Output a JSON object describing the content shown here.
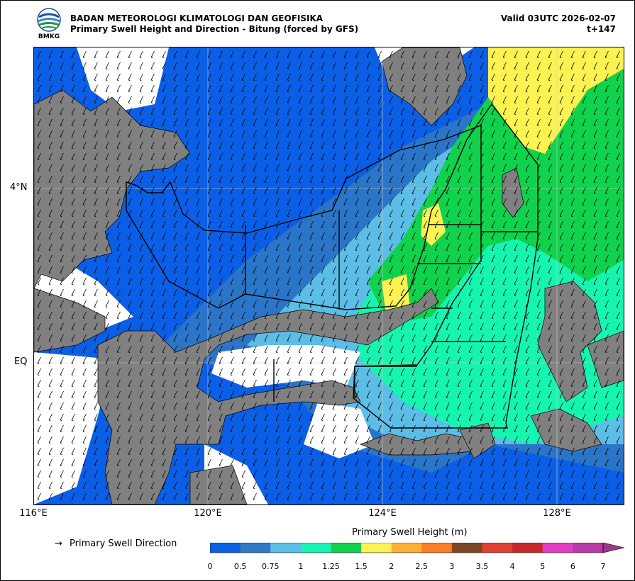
{
  "header": {
    "org": "BADAN METEOROLOGI KLIMATOLOGI DAN GEOFISIKA",
    "product": "Primary Swell Height and Direction - Bitung (forced by GFS)",
    "valid": "Valid 03UTC 2026-02-07",
    "step": "t+147",
    "logo_text": "BMKG"
  },
  "map": {
    "lat_labels": [
      "4°N",
      "EQ"
    ],
    "lon_labels": [
      "116°E",
      "120°E",
      "124°E",
      "128°E"
    ],
    "dominant_direction": "south-west",
    "land_color": "#808080",
    "nodata_color": "#ffffff"
  },
  "legend": {
    "arrow_glyph": "→",
    "direction_label": "Primary Swell Direction",
    "colorbar_title": "Primary Swell Height (m)",
    "ticks": [
      "0",
      "0.5",
      "0.75",
      "1",
      "1.25",
      "1.5",
      "2",
      "2.5",
      "3",
      "3.5",
      "4",
      "5",
      "6",
      "7"
    ],
    "colors": [
      "#0b5fe6",
      "#2f78c4",
      "#5cbde6",
      "#16f5b0",
      "#10d24c",
      "#fcf251",
      "#fdb132",
      "#fb7d26",
      "#7e4624",
      "#e03f33",
      "#c8282b",
      "#e23cc4",
      "#b83aa4",
      "#98398e"
    ]
  }
}
